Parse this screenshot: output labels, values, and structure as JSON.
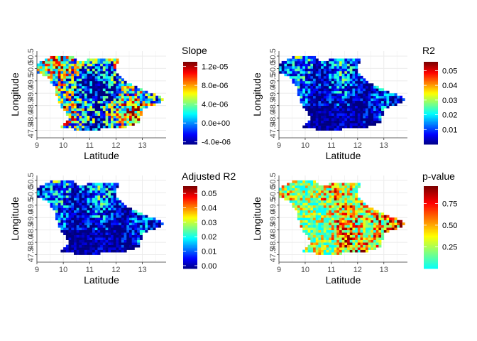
{
  "chart_data": [
    {
      "type": "heatmap",
      "title": "Slope",
      "xlabel": "Latitude",
      "ylabel": "Longitude",
      "x_ticks": [
        "9",
        "10",
        "11",
        "12",
        "13"
      ],
      "y_ticks": [
        "47.5",
        "48.0",
        "48.5",
        "49.0",
        "49.5",
        "50.0",
        "50.5"
      ],
      "xlim": [
        9.0,
        13.9
      ],
      "ylim": [
        47.2,
        50.7
      ],
      "legend_title": "Slope",
      "legend_ticks": [
        "1.2e-05",
        "8.0e-06",
        "4.0e-06",
        "0.0e+00",
        "-4.0e-06"
      ],
      "legend_values": [
        1.2e-05,
        8e-06,
        4e-06,
        0.0,
        -4e-06
      ],
      "value_range": [
        -4.5e-06,
        1.3e-05
      ],
      "colormap": "jet",
      "seed": 17,
      "noise": 0.85
    },
    {
      "type": "heatmap",
      "title": "R2",
      "xlabel": "Latitude",
      "ylabel": "Longitude",
      "x_ticks": [
        "9",
        "10",
        "11",
        "12",
        "13"
      ],
      "y_ticks": [
        "47.5",
        "48.0",
        "48.5",
        "49.0",
        "49.5",
        "50.0",
        "50.5"
      ],
      "xlim": [
        9.0,
        13.9
      ],
      "ylim": [
        47.2,
        50.7
      ],
      "legend_title": "R2",
      "legend_ticks": [
        "0.05",
        "0.04",
        "0.03",
        "0.02",
        "0.01"
      ],
      "legend_values": [
        0.05,
        0.04,
        0.03,
        0.02,
        0.01
      ],
      "value_range": [
        0.0,
        0.056
      ],
      "colormap": "jet",
      "seed": 41,
      "noise": 0.6
    },
    {
      "type": "heatmap",
      "title": "Adjusted R2",
      "xlabel": "Latitude",
      "ylabel": "Longitude",
      "x_ticks": [
        "9",
        "10",
        "11",
        "12",
        "13"
      ],
      "y_ticks": [
        "47.5",
        "48.0",
        "48.5",
        "49.0",
        "49.5",
        "50.0",
        "50.5"
      ],
      "xlim": [
        9.0,
        13.9
      ],
      "ylim": [
        47.2,
        50.7
      ],
      "legend_title": "Adjusted R2",
      "legend_ticks": [
        "0.05",
        "0.04",
        "0.03",
        "0.02",
        "0.01",
        "0.00"
      ],
      "legend_values": [
        0.05,
        0.04,
        0.03,
        0.02,
        0.01,
        0.0
      ],
      "value_range": [
        -0.002,
        0.055
      ],
      "colormap": "jet",
      "seed": 41,
      "noise": 0.6
    },
    {
      "type": "heatmap",
      "title": "p-value",
      "xlabel": "Latitude",
      "ylabel": "Longitude",
      "x_ticks": [
        "9",
        "10",
        "11",
        "12",
        "13"
      ],
      "y_ticks": [
        "47.5",
        "48.0",
        "48.5",
        "49.0",
        "49.5",
        "50.0",
        "50.5"
      ],
      "xlim": [
        9.0,
        13.9
      ],
      "ylim": [
        47.2,
        50.7
      ],
      "legend_title": "p-value",
      "legend_ticks": [
        "0.75",
        "0.50",
        "0.25"
      ],
      "legend_values": [
        0.75,
        0.5,
        0.25
      ],
      "value_range": [
        0.0,
        0.95
      ],
      "colormap": "jet_from_cyan",
      "seed": 99,
      "noise": 0.9
    }
  ],
  "colors": {
    "jet_stops": [
      "#00007F",
      "#0000FF",
      "#007FFF",
      "#00FFFF",
      "#7FFF7F",
      "#FFFF00",
      "#FF7F00",
      "#FF0000",
      "#7F0000"
    ],
    "grid": "#ebebeb",
    "axis": "#333333"
  }
}
